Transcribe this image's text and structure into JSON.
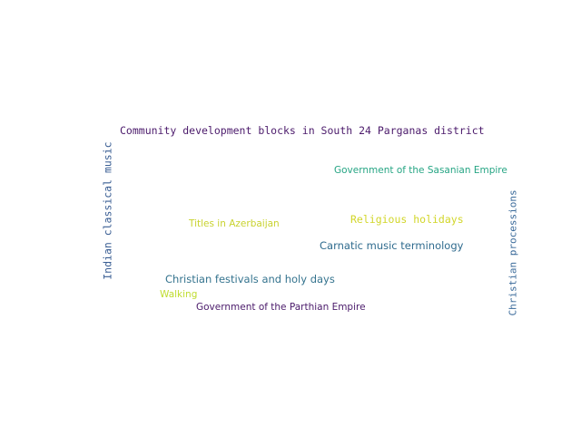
{
  "words": [
    {
      "text": "Community development blocks in South 24 Parganas district",
      "color": "#4b1a6b"
    },
    {
      "text": "Indian classical music",
      "color": "#3b5f94"
    },
    {
      "text": "Government of the Sasanian Empire",
      "color": "#26a584"
    },
    {
      "text": "Christian processions",
      "color": "#3a6a9a"
    },
    {
      "text": "Titles in Azerbaijan",
      "color": "#c8d22e"
    },
    {
      "text": "Religious holidays",
      "color": "#d2d62a"
    },
    {
      "text": "Carnatic music terminology",
      "color": "#2f6b8e"
    },
    {
      "text": "Christian festivals and holy days",
      "color": "#34738e"
    },
    {
      "text": "Walking",
      "color": "#bfdc2e"
    },
    {
      "text": "Government of the Parthian Empire",
      "color": "#4a1a6a"
    }
  ]
}
